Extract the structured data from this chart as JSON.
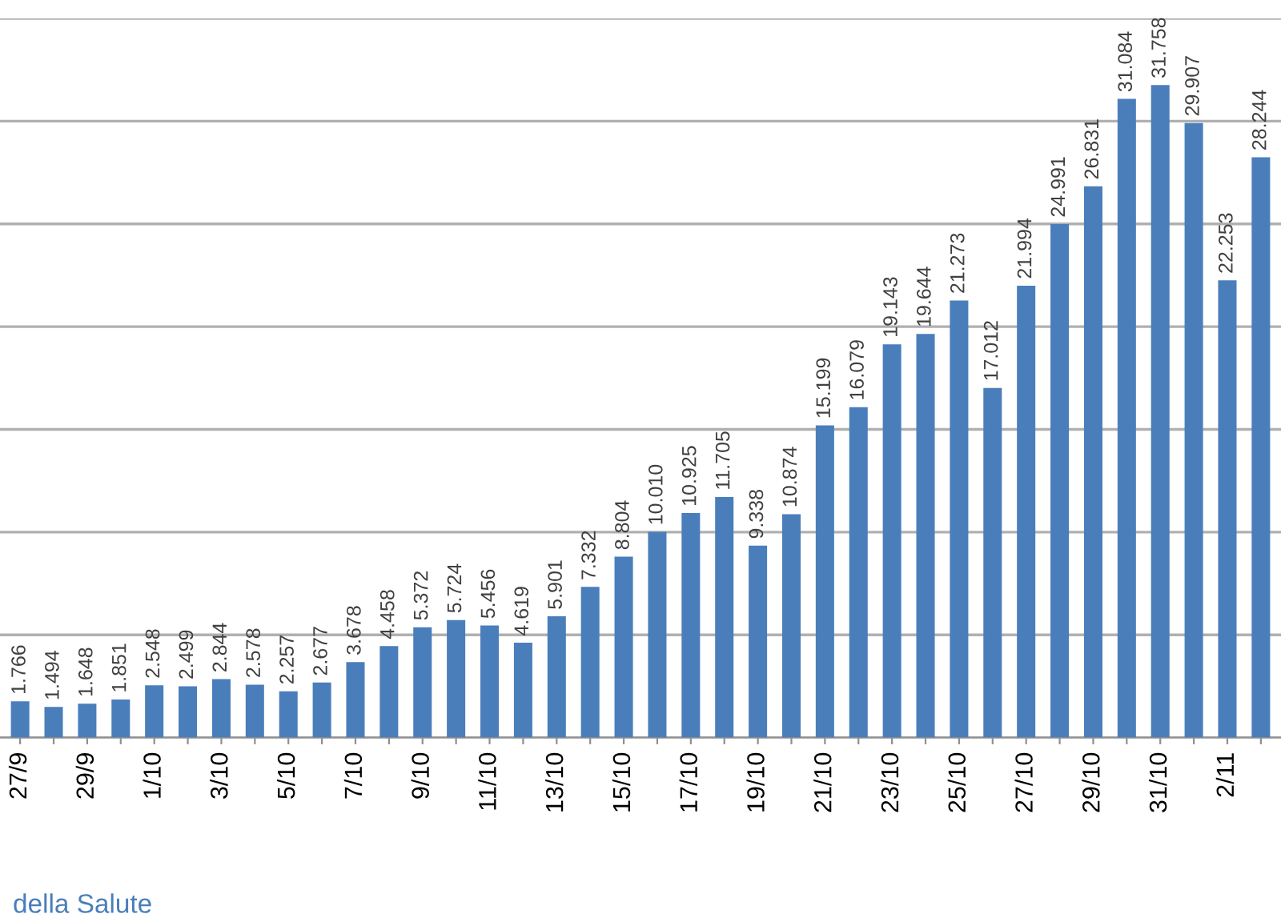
{
  "chart_data": {
    "type": "bar",
    "categories": [
      "27/9",
      null,
      "29/9",
      null,
      "1/10",
      null,
      "3/10",
      null,
      "5/10",
      null,
      "7/10",
      null,
      "9/10",
      null,
      "11/10",
      null,
      "13/10",
      null,
      "15/10",
      null,
      "17/10",
      null,
      "19/10",
      null,
      "21/10",
      null,
      "23/10",
      null,
      "25/10",
      null,
      "27/10",
      null,
      "29/10",
      null,
      "31/10",
      null,
      "2/11",
      null
    ],
    "values": [
      1766,
      1494,
      1648,
      1851,
      2548,
      2499,
      2844,
      2578,
      2257,
      2677,
      3678,
      4458,
      5372,
      5724,
      5456,
      4619,
      5901,
      7332,
      8804,
      10010,
      10925,
      11705,
      9338,
      10874,
      15199,
      16079,
      19143,
      19644,
      21273,
      17012,
      21994,
      24991,
      26831,
      31084,
      31758,
      29907,
      22253,
      28244
    ],
    "value_labels": [
      "1.766",
      "1.494",
      "1.648",
      "1.851",
      "2.548",
      "2.499",
      "2.844",
      "2.578",
      "2.257",
      "2.677",
      "3.678",
      "4.458",
      "5.372",
      "5.724",
      "5.456",
      "4.619",
      "5.901",
      "7.332",
      "8.804",
      "10.010",
      "10.925",
      "11.705",
      "9.338",
      "10.874",
      "15.199",
      "16.079",
      "19.143",
      "19.644",
      "21.273",
      "17.012",
      "21.994",
      "24.991",
      "26.831",
      "31.084",
      "31.758",
      "29.907",
      "22.253",
      "28.244"
    ],
    "color": "#4a7ebb",
    "ylim": [
      0,
      35000
    ],
    "yticks": [
      {
        "value": 0,
        "label": null
      },
      {
        "value": 5000,
        "label": null
      },
      {
        "value": 10000,
        "label": null
      },
      {
        "value": 15000,
        "label": null
      },
      {
        "value": 20000,
        "label": null
      },
      {
        "value": 25000,
        "label": null
      },
      {
        "value": 30000,
        "label": null
      },
      {
        "value": 35000,
        "label": null
      }
    ],
    "grid": "y",
    "tick_labels": "x",
    "annotations": [
      "della Salute"
    ]
  }
}
